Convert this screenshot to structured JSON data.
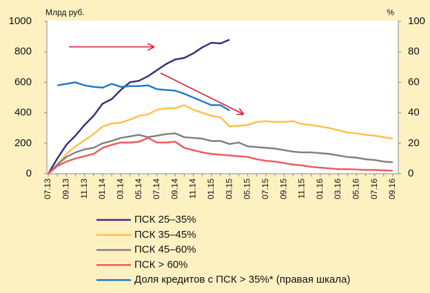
{
  "chart_data": {
    "type": "line",
    "y_label": "Млрд руб.",
    "y2_label": "%",
    "categories": [
      "07.13",
      null,
      "09.13",
      null,
      "11.13",
      null,
      "01.14",
      null,
      "03.14",
      null,
      "05.14",
      null,
      "07.14",
      null,
      "09.14",
      null,
      "11.14",
      null,
      "01.15",
      null,
      "03.15",
      null,
      "05.15",
      null,
      "07.15",
      null,
      "09.15",
      null,
      "11.15",
      null,
      "01.16",
      null,
      "03.16",
      null,
      "05.16",
      null,
      "07.16",
      null,
      "09.16"
    ],
    "ylim": [
      0,
      1000
    ],
    "yticks": [
      0,
      200,
      400,
      600,
      800,
      1000
    ],
    "y2lim": [
      0,
      100
    ],
    "y2ticks": [
      0,
      20,
      40,
      60,
      80,
      100
    ],
    "series": [
      {
        "name": "ПСК 25–35%",
        "color": "#3f2a7a",
        "values": [
          0,
          100,
          190,
          250,
          320,
          380,
          460,
          490,
          550,
          600,
          610,
          640,
          680,
          720,
          750,
          760,
          790,
          830,
          860,
          855,
          880,
          null,
          null,
          null,
          null,
          null,
          null,
          null,
          null,
          null,
          null,
          null,
          null,
          null,
          null,
          null,
          null,
          null,
          null
        ]
      },
      {
        "name": "ПСК 35–45%",
        "color": "#ffc04a",
        "values": [
          0,
          60,
          130,
          180,
          220,
          260,
          310,
          330,
          335,
          355,
          380,
          390,
          420,
          430,
          430,
          450,
          420,
          400,
          380,
          370,
          310,
          315,
          320,
          340,
          345,
          340,
          340,
          345,
          325,
          320,
          310,
          300,
          285,
          270,
          265,
          255,
          250,
          240,
          230
        ]
      },
      {
        "name": "ПСК 45–60%",
        "color": "#808080",
        "values": [
          0,
          60,
          110,
          140,
          160,
          170,
          200,
          215,
          235,
          245,
          255,
          240,
          250,
          260,
          265,
          240,
          235,
          230,
          215,
          215,
          195,
          205,
          180,
          175,
          170,
          165,
          155,
          145,
          140,
          140,
          135,
          130,
          120,
          110,
          105,
          95,
          90,
          80,
          75
        ]
      },
      {
        "name": "ПСК > 60%",
        "color": "#f05a5a",
        "values": [
          0,
          50,
          80,
          100,
          115,
          130,
          170,
          190,
          205,
          205,
          210,
          235,
          205,
          205,
          210,
          170,
          155,
          140,
          130,
          125,
          120,
          115,
          110,
          95,
          85,
          80,
          70,
          60,
          55,
          45,
          40,
          35,
          30,
          30,
          28,
          25,
          25,
          22,
          20
        ]
      },
      {
        "name": "Доля кредитов с ПСК > 35%* (правая шкала)",
        "color": "#1f7ac4",
        "axis": "y2",
        "values": [
          null,
          58,
          59,
          60,
          58,
          57,
          56.5,
          59,
          57,
          57.5,
          57.5,
          58,
          55.5,
          55,
          54.5,
          52.5,
          50,
          47.5,
          45,
          45,
          41.5,
          null,
          null,
          null,
          null,
          null,
          null,
          null,
          null,
          null,
          null,
          null,
          null,
          null,
          null,
          null,
          null,
          null,
          null
        ]
      }
    ]
  }
}
